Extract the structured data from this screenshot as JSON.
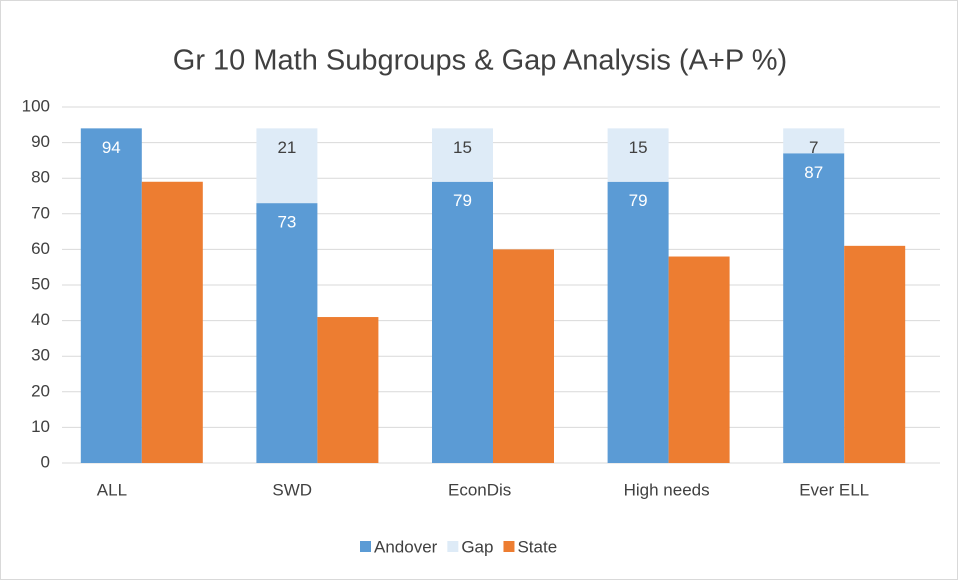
{
  "chart_data": {
    "type": "bar",
    "stacked": true,
    "title": "Gr 10 Math Subgroups & Gap Analysis (A+P %)",
    "categories": [
      "ALL",
      "SWD",
      "EconDis",
      "High needs",
      "Ever ELL"
    ],
    "series": [
      {
        "name": "Andover",
        "color": "#5b9bd5",
        "values": [
          94,
          73,
          79,
          79,
          87
        ],
        "stack": "a"
      },
      {
        "name": "Gap",
        "color": "#deebf7",
        "values": [
          null,
          21,
          15,
          15,
          7
        ],
        "stack": "a"
      },
      {
        "name": "State",
        "color": "#ed7d31",
        "values": [
          79,
          41,
          60,
          58,
          61
        ],
        "stack": "b"
      }
    ],
    "ylim": [
      0,
      100
    ],
    "yticks": [
      0,
      10,
      20,
      30,
      40,
      50,
      60,
      70,
      80,
      90,
      100
    ],
    "grid": true,
    "legend": "bottom"
  }
}
